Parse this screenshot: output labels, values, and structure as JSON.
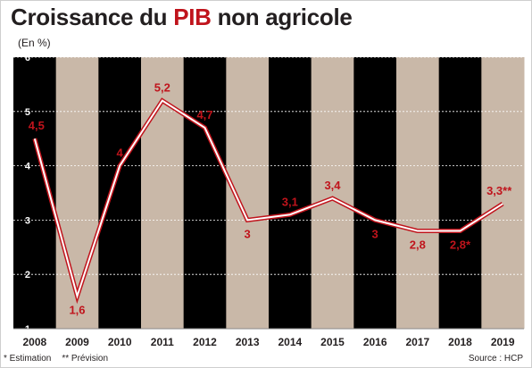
{
  "header": {
    "title_prefix": "Croissance du ",
    "title_highlight": "PIB",
    "title_suffix": " non agricole",
    "unit": "(En %)"
  },
  "footer": {
    "note_estimation": "* Estimation",
    "note_prevision": "** Prévision",
    "source": "Source : HCP"
  },
  "colors": {
    "accent": "#c0141c",
    "line_fill": "#ffffff",
    "dark_band": "#000000",
    "light_band": "#c9b8a8",
    "text": "#231f20"
  },
  "chart_data": {
    "type": "line",
    "title": "Croissance du PIB non agricole",
    "ylabel": "(En %)",
    "xlabel": "",
    "x": [
      "2008",
      "2009",
      "2010",
      "2011",
      "2012",
      "2013",
      "2014",
      "2015",
      "2016",
      "2017",
      "2018",
      "2019"
    ],
    "series": [
      {
        "values": [
          4.5,
          1.6,
          4,
          5.2,
          4.7,
          3,
          3.1,
          3.4,
          3,
          2.8,
          2.8,
          3.3
        ],
        "labels": [
          "4,5",
          "1,6",
          "4",
          "5,2",
          "4,7",
          "3",
          "3,1",
          "3,4",
          "3",
          "2,8",
          "2,8*",
          "3,3**"
        ],
        "label_positions": [
          "above",
          "below",
          "above",
          "above",
          "above",
          "below",
          "above",
          "above",
          "below",
          "below",
          "below",
          "above"
        ]
      }
    ],
    "yticks": [
      "1",
      "2",
      "3",
      "4",
      "5",
      "6"
    ],
    "ylim": [
      1,
      6
    ],
    "grid": true,
    "legend": "none"
  }
}
